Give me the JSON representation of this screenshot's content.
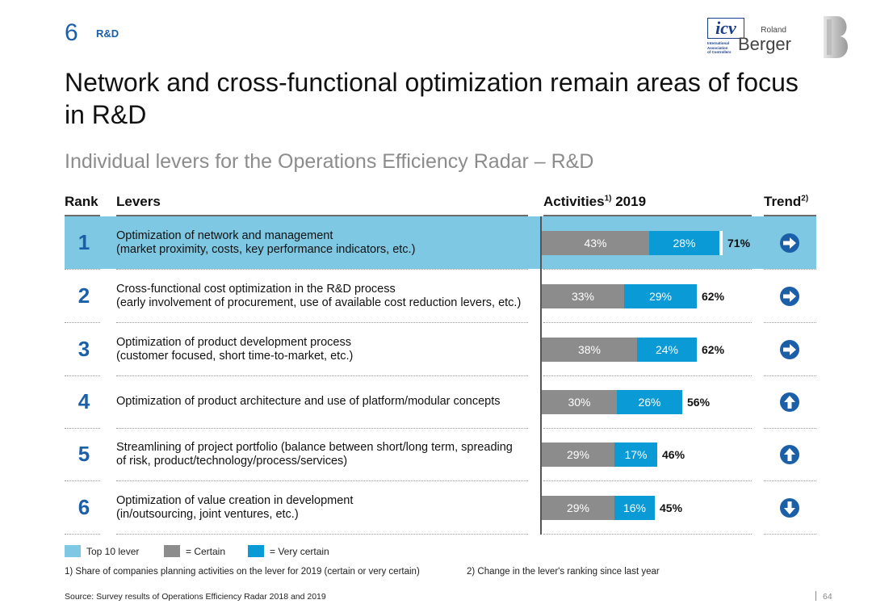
{
  "section": {
    "number": "6",
    "label": "R&D"
  },
  "logos": {
    "icv": {
      "mark": "icv",
      "sub": [
        "International",
        "Association",
        "of Controllers"
      ]
    },
    "roland_berger": {
      "top": "Roland",
      "bottom": "Berger"
    }
  },
  "title": "Network and cross-functional optimization remain areas of focus in R&D",
  "subtitle": "Individual levers for the Operations Efficiency Radar – R&D",
  "table_headers": {
    "rank": "Rank",
    "levers": "Levers",
    "activities": "Activities",
    "activities_sup": "1)",
    "activities_year": " 2019",
    "trend": "Trend",
    "trend_sup": "2)"
  },
  "colors": {
    "top10": "#7ec8e3",
    "certain": "#8c8c8c",
    "very_certain": "#0a9ad6",
    "accent": "#1a5fa8"
  },
  "chart_data": {
    "type": "bar",
    "orientation": "horizontal-stacked",
    "title": "Activities 2019",
    "categories": [
      "1",
      "2",
      "3",
      "4",
      "5",
      "6"
    ],
    "series": [
      {
        "name": "Certain",
        "values": [
          43,
          33,
          38,
          30,
          29,
          29
        ]
      },
      {
        "name": "Very certain",
        "values": [
          28,
          29,
          24,
          26,
          17,
          16
        ]
      }
    ],
    "totals": [
      71,
      62,
      62,
      56,
      46,
      45
    ],
    "unit": "%",
    "xlim": [
      0,
      100
    ]
  },
  "rows": [
    {
      "rank": "1",
      "lever_line1": "Optimization of network and management",
      "lever_line2": "(market proximity, costs, key performance indicators, etc.)",
      "certain": "43%",
      "very": "28%",
      "total": "71%",
      "top10": true,
      "trend": "right-arrow-icon"
    },
    {
      "rank": "2",
      "lever_line1": "Cross-functional cost optimization in the R&D process",
      "lever_line2": "(early involvement of procurement, use of available cost reduction levers, etc.)",
      "certain": "33%",
      "very": "29%",
      "total": "62%",
      "top10": false,
      "trend": "right-arrow-icon"
    },
    {
      "rank": "3",
      "lever_line1": "Optimization of product development process",
      "lever_line2": "(customer focused, short time-to-market, etc.)",
      "certain": "38%",
      "very": "24%",
      "total": "62%",
      "top10": false,
      "trend": "right-arrow-icon"
    },
    {
      "rank": "4",
      "lever_line1": "Optimization of product architecture and use of platform/modular concepts",
      "lever_line2": "",
      "certain": "30%",
      "very": "26%",
      "total": "56%",
      "top10": false,
      "trend": "up-arrow-icon"
    },
    {
      "rank": "5",
      "lever_line1": "Streamlining of project portfolio (balance between short/long term, spreading",
      "lever_line2": "of risk, product/technology/process/services)",
      "certain": "29%",
      "very": "17%",
      "total": "46%",
      "top10": false,
      "trend": "up-arrow-icon"
    },
    {
      "rank": "6",
      "lever_line1": "Optimization of value creation in development",
      "lever_line2": "(in/outsourcing, joint ventures, etc.)",
      "certain": "29%",
      "very": "16%",
      "total": "45%",
      "top10": false,
      "trend": "down-arrow-icon"
    }
  ],
  "legend": {
    "top10": "Top 10 lever",
    "certain": "= Certain",
    "very_certain": "= Very certain"
  },
  "footnotes": {
    "note1": "1) Share of companies planning activities on the lever for 2019 (certain or very certain)",
    "note2": "2) Change in the lever's ranking since last year"
  },
  "source": "Source: Survey results of Operations Efficiency Radar 2018 and 2019",
  "page_number": "64"
}
